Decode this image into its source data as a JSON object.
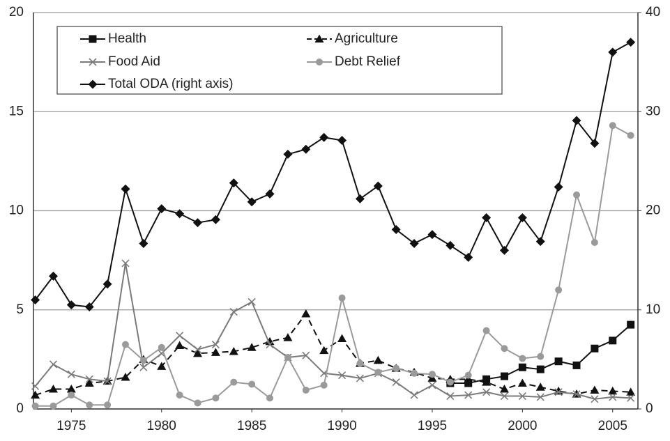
{
  "chart_data": {
    "type": "line",
    "x": [
      1973,
      1974,
      1975,
      1976,
      1977,
      1978,
      1979,
      1980,
      1981,
      1982,
      1983,
      1984,
      1985,
      1986,
      1987,
      1988,
      1989,
      1990,
      1991,
      1992,
      1993,
      1994,
      1995,
      1996,
      1997,
      1998,
      1999,
      2000,
      2001,
      2002,
      2003,
      2004,
      2005,
      2006
    ],
    "xlim": [
      1972.9,
      2006.4
    ],
    "xticks": [
      1975,
      1980,
      1985,
      1990,
      1995,
      2000,
      2005
    ],
    "ylim": [
      0,
      20
    ],
    "yticks": [
      0,
      5,
      10,
      15,
      20
    ],
    "y2lim": [
      0,
      40
    ],
    "y2ticks": [
      0,
      10,
      20,
      30,
      40
    ],
    "grid": true,
    "legend": "top-left",
    "series": [
      {
        "name": "Health",
        "color": "#111111",
        "marker": "square",
        "dash": false,
        "values": [
          null,
          null,
          null,
          null,
          null,
          null,
          null,
          null,
          null,
          null,
          null,
          null,
          null,
          null,
          null,
          null,
          null,
          null,
          null,
          null,
          null,
          null,
          null,
          1.3,
          1.3,
          1.5,
          1.65,
          2.1,
          2.0,
          2.4,
          2.2,
          3.05,
          3.45,
          4.25
        ]
      },
      {
        "name": "Agriculture",
        "color": "#111111",
        "marker": "triangle",
        "dash": true,
        "values": [
          0.7,
          1.0,
          1.0,
          1.3,
          1.4,
          1.6,
          2.5,
          2.15,
          3.2,
          2.8,
          2.85,
          2.9,
          3.1,
          3.4,
          3.6,
          4.8,
          2.95,
          3.55,
          2.3,
          2.45,
          2.05,
          1.85,
          1.55,
          1.5,
          1.5,
          1.35,
          1.0,
          1.3,
          1.1,
          0.9,
          0.75,
          0.95,
          0.9,
          0.85
        ]
      },
      {
        "name": "Food Aid",
        "color": "#7a7a7a",
        "marker": "cross",
        "dash": false,
        "values": [
          1.15,
          2.25,
          1.75,
          1.5,
          1.4,
          7.35,
          2.1,
          2.8,
          3.7,
          3.0,
          3.25,
          4.9,
          5.4,
          3.25,
          2.6,
          2.7,
          1.8,
          1.7,
          1.55,
          1.8,
          1.35,
          0.7,
          1.2,
          0.65,
          0.7,
          0.85,
          0.65,
          0.65,
          0.6,
          0.85,
          0.75,
          0.5,
          0.6,
          0.55
        ]
      },
      {
        "name": "Debt Relief",
        "color": "#9a9a9a",
        "marker": "circle",
        "dash": false,
        "values": [
          0.15,
          0.15,
          0.7,
          0.2,
          0.2,
          3.25,
          2.45,
          3.1,
          0.7,
          0.3,
          0.55,
          1.35,
          1.25,
          0.55,
          2.6,
          0.95,
          1.2,
          5.6,
          2.3,
          1.85,
          2.05,
          1.8,
          1.75,
          1.35,
          1.7,
          3.95,
          3.05,
          2.55,
          2.65,
          6.0,
          10.8,
          8.4,
          14.3,
          13.8
        ]
      },
      {
        "name": "Total ODA (right axis)",
        "color": "#111111",
        "marker": "diamond",
        "dash": false,
        "axis": "y2",
        "values": [
          11.0,
          13.4,
          10.5,
          10.3,
          12.6,
          22.2,
          16.7,
          20.2,
          19.7,
          18.8,
          19.1,
          22.8,
          20.9,
          21.7,
          25.7,
          26.2,
          27.4,
          27.1,
          21.2,
          22.5,
          18.1,
          16.7,
          17.6,
          16.5,
          15.3,
          19.3,
          16.0,
          19.3,
          16.9,
          22.4,
          29.1,
          26.8,
          36.0,
          37.0
        ]
      }
    ]
  }
}
